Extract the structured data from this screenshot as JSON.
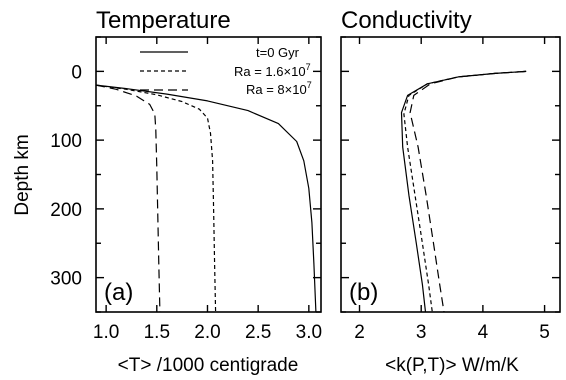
{
  "chart_data": [
    {
      "type": "line",
      "title": "Temperature",
      "panel_label": "(a)",
      "xlabel": "<T> /1000 centigrade",
      "ylabel": "Depth  km",
      "xlim": [
        0.9,
        3.12
      ],
      "ylim": [
        350,
        -50
      ],
      "y_reversed": true,
      "xticks": [
        "1.0",
        "1.5",
        "2.0",
        "2.5",
        "3.0"
      ],
      "yticks": [
        "0",
        "100",
        "200",
        "300"
      ],
      "legend": {
        "placement": "top-right",
        "entries": [
          {
            "text": "t=0 Gyr",
            "style": "solid"
          },
          {
            "text": "Ra = 1.6×10",
            "sup": "7",
            "style": "short-dash"
          },
          {
            "text": "Ra = 8×10",
            "sup": "7",
            "style": "long-dash"
          }
        ]
      },
      "series": [
        {
          "name": "t=0 Gyr",
          "style": "solid",
          "x": [
            0.9,
            1.2,
            1.6,
            2.0,
            2.4,
            2.7,
            2.88,
            2.95,
            3.0,
            3.03,
            3.05,
            3.07
          ],
          "y": [
            20,
            25,
            33,
            43,
            57,
            76,
            102,
            130,
            170,
            220,
            280,
            350
          ]
        },
        {
          "name": "Ra = 1.6×10^7",
          "style": "short-dash",
          "x": [
            0.9,
            1.2,
            1.5,
            1.75,
            1.92,
            2.0,
            2.03,
            2.05,
            2.06,
            2.07,
            2.08
          ],
          "y": [
            20,
            26,
            34,
            44,
            55,
            68,
            90,
            130,
            200,
            280,
            350
          ]
        },
        {
          "name": "Ra = 8×10^7",
          "style": "long-dash",
          "x": [
            0.9,
            1.1,
            1.3,
            1.43,
            1.48,
            1.49,
            1.5,
            1.51,
            1.52,
            1.53
          ],
          "y": [
            20,
            26,
            36,
            48,
            62,
            85,
            140,
            210,
            280,
            350
          ]
        }
      ]
    },
    {
      "type": "line",
      "title": "Conductivity",
      "panel_label": "(b)",
      "xlabel": "<k(P,T)>  W/m/K",
      "xlim": [
        1.7,
        5.25
      ],
      "ylim": [
        350,
        -50
      ],
      "y_reversed": true,
      "xticks": [
        "2",
        "3",
        "4",
        "5"
      ],
      "series": [
        {
          "name": "t=0 Gyr",
          "style": "solid",
          "x": [
            4.7,
            4.2,
            3.6,
            3.1,
            2.78,
            2.68,
            2.7,
            2.8,
            2.92,
            3.02,
            3.07
          ],
          "y": [
            0,
            3,
            8,
            18,
            35,
            60,
            110,
            180,
            250,
            310,
            350
          ]
        },
        {
          "name": "Ra = 1.6×10^7",
          "style": "short-dash",
          "x": [
            4.7,
            4.2,
            3.6,
            3.1,
            2.8,
            2.72,
            2.78,
            2.9,
            3.02,
            3.12,
            3.18
          ],
          "y": [
            0,
            3,
            8,
            18,
            35,
            62,
            110,
            180,
            250,
            310,
            350
          ]
        },
        {
          "name": "Ra = 8×10^7",
          "style": "long-dash",
          "x": [
            4.7,
            4.2,
            3.6,
            3.15,
            2.88,
            2.82,
            2.95,
            3.08,
            3.2,
            3.3,
            3.37
          ],
          "y": [
            0,
            3,
            8,
            18,
            35,
            60,
            110,
            180,
            250,
            310,
            350
          ]
        }
      ]
    }
  ]
}
